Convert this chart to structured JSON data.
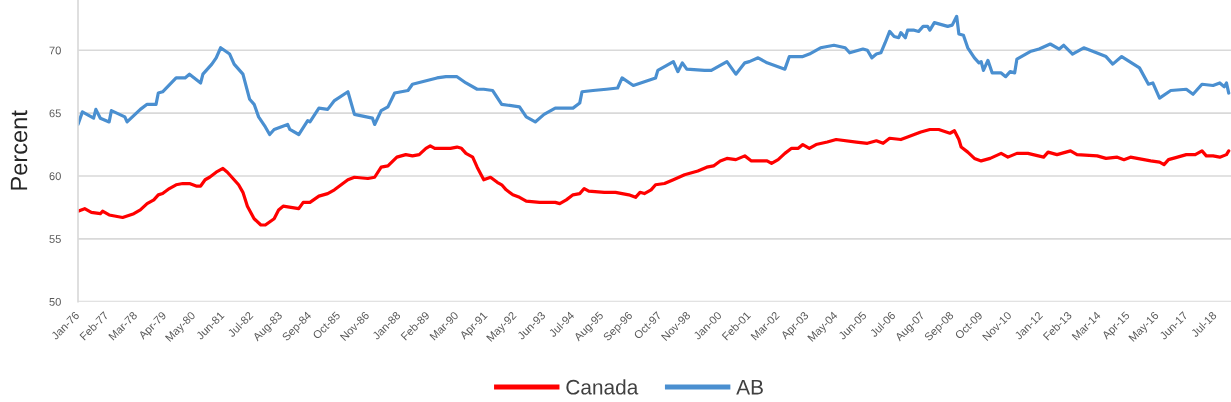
{
  "chart_data": {
    "type": "line",
    "ylabel": "Percent",
    "xlim": [
      "1976-01",
      "2019-02"
    ],
    "xticks": [
      {
        "value": "1976-01",
        "label": "Jan-76"
      },
      {
        "value": "1977-02",
        "label": "Feb-77"
      },
      {
        "value": "1978-03",
        "label": "Mar-78"
      },
      {
        "value": "1979-04",
        "label": "Apr-79"
      },
      {
        "value": "1980-05",
        "label": "May-80"
      },
      {
        "value": "1981-06",
        "label": "Jun-81"
      },
      {
        "value": "1982-07",
        "label": "Jul-82"
      },
      {
        "value": "1983-08",
        "label": "Aug-83"
      },
      {
        "value": "1984-09",
        "label": "Sep-84"
      },
      {
        "value": "1985-10",
        "label": "Oct-85"
      },
      {
        "value": "1986-11",
        "label": "Nov-86"
      },
      {
        "value": "1988-01",
        "label": "Jan-88"
      },
      {
        "value": "1989-02",
        "label": "Feb-89"
      },
      {
        "value": "1990-03",
        "label": "Mar-90"
      },
      {
        "value": "1991-04",
        "label": "Apr-91"
      },
      {
        "value": "1992-05",
        "label": "May-92"
      },
      {
        "value": "1993-06",
        "label": "Jun-93"
      },
      {
        "value": "1994-07",
        "label": "Jul-94"
      },
      {
        "value": "1995-08",
        "label": "Aug-95"
      },
      {
        "value": "1996-09",
        "label": "Sep-96"
      },
      {
        "value": "1997-10",
        "label": "Oct-97"
      },
      {
        "value": "1998-11",
        "label": "Nov-98"
      },
      {
        "value": "2000-01",
        "label": "Jan-00"
      },
      {
        "value": "2001-02",
        "label": "Feb-01"
      },
      {
        "value": "2002-03",
        "label": "Mar-02"
      },
      {
        "value": "2003-04",
        "label": "Apr-03"
      },
      {
        "value": "2004-05",
        "label": "May-04"
      },
      {
        "value": "2005-06",
        "label": "Jun-05"
      },
      {
        "value": "2006-07",
        "label": "Jul-06"
      },
      {
        "value": "2007-08",
        "label": "Aug-07"
      },
      {
        "value": "2008-09",
        "label": "Sep-08"
      },
      {
        "value": "2009-10",
        "label": "Oct-09"
      },
      {
        "value": "2010-11",
        "label": "Nov-10"
      },
      {
        "value": "2012-01",
        "label": "Jan-12"
      },
      {
        "value": "2013-02",
        "label": "Feb-13"
      },
      {
        "value": "2014-03",
        "label": "Mar-14"
      },
      {
        "value": "2015-04",
        "label": "Apr-15"
      },
      {
        "value": "2016-05",
        "label": "May-16"
      },
      {
        "value": "2017-06",
        "label": "Jun-17"
      },
      {
        "value": "2018-07",
        "label": "Jul-18"
      }
    ],
    "ylim": [
      50,
      74
    ],
    "yticks": [
      50,
      55,
      60,
      65,
      70
    ],
    "grid": "y",
    "legend": "bottom",
    "line_style": "solid",
    "series": [
      {
        "name": "Canada",
        "color": "#ff0000",
        "x": [
          "1976-01",
          "1976-04",
          "1976-07",
          "1976-11",
          "1976-12",
          "1977-03",
          "1977-09",
          "1978-02",
          "1978-05",
          "1978-08",
          "1978-11",
          "1979-01",
          "1979-03",
          "1979-06",
          "1979-09",
          "1979-12",
          "1980-03",
          "1980-06",
          "1980-08",
          "1980-10",
          "1980-12",
          "1981-03",
          "1981-06",
          "1981-08",
          "1981-10",
          "1982-01",
          "1982-03",
          "1982-05",
          "1982-08",
          "1982-11",
          "1983-01",
          "1983-05",
          "1983-07",
          "1983-09",
          "1984-04",
          "1984-06",
          "1984-09",
          "1985-01",
          "1985-05",
          "1985-08",
          "1985-11",
          "1986-02",
          "1986-05",
          "1986-11",
          "1987-02",
          "1987-05",
          "1987-08",
          "1987-12",
          "1988-04",
          "1988-07",
          "1988-10",
          "1989-01",
          "1989-03",
          "1989-05",
          "1989-12",
          "1990-03",
          "1990-05",
          "1990-07",
          "1990-10",
          "1990-12",
          "1991-03",
          "1991-06",
          "1991-09",
          "1991-11",
          "1992-01",
          "1992-04",
          "1992-07",
          "1992-10",
          "1993-04",
          "1993-11",
          "1994-01",
          "1994-04",
          "1994-07",
          "1994-10",
          "1994-12",
          "1995-02",
          "1995-09",
          "1996-02",
          "1996-08",
          "1996-11",
          "1997-01",
          "1997-03",
          "1997-06",
          "1997-08",
          "1997-12",
          "1998-04",
          "1998-09",
          "1999-03",
          "1999-07",
          "1999-10",
          "2000-01",
          "2000-04",
          "2000-08",
          "2000-12",
          "2001-03",
          "2001-10",
          "2001-12",
          "2002-03",
          "2002-06",
          "2002-09",
          "2002-12",
          "2003-02",
          "2003-05",
          "2003-08",
          "2004-01",
          "2004-05",
          "2005-02",
          "2005-07",
          "2005-11",
          "2006-02",
          "2006-05",
          "2006-10",
          "2007-01",
          "2007-04",
          "2007-07",
          "2007-11",
          "2008-03",
          "2008-08",
          "2008-10",
          "2008-12",
          "2009-01",
          "2009-04",
          "2009-07",
          "2009-10",
          "2010-02",
          "2010-07",
          "2010-10",
          "2011-02",
          "2011-07",
          "2012-02",
          "2012-04",
          "2012-08",
          "2013-02",
          "2013-05",
          "2014-02",
          "2014-06",
          "2014-11",
          "2015-02",
          "2015-05",
          "2016-02",
          "2016-06",
          "2016-08",
          "2016-10",
          "2017-02",
          "2017-06",
          "2017-10",
          "2018-01",
          "2018-03",
          "2018-06",
          "2018-09",
          "2018-12",
          "2019-01"
        ],
        "values": [
          57.2,
          57.4,
          57.1,
          57.0,
          57.2,
          56.9,
          56.7,
          57.0,
          57.3,
          57.8,
          58.1,
          58.5,
          58.6,
          59.0,
          59.3,
          59.4,
          59.4,
          59.2,
          59.2,
          59.7,
          59.9,
          60.3,
          60.6,
          60.3,
          59.9,
          59.3,
          58.7,
          57.6,
          56.6,
          56.1,
          56.1,
          56.6,
          57.3,
          57.6,
          57.4,
          57.9,
          57.9,
          58.4,
          58.6,
          58.9,
          59.3,
          59.7,
          59.9,
          59.8,
          59.9,
          60.7,
          60.8,
          61.5,
          61.7,
          61.6,
          61.7,
          62.2,
          62.4,
          62.2,
          62.2,
          62.3,
          62.2,
          61.8,
          61.5,
          60.7,
          59.7,
          59.9,
          59.5,
          59.3,
          58.9,
          58.5,
          58.3,
          58.0,
          57.9,
          57.9,
          57.8,
          58.1,
          58.5,
          58.6,
          59.0,
          58.8,
          58.7,
          58.7,
          58.5,
          58.3,
          58.7,
          58.6,
          58.9,
          59.3,
          59.4,
          59.7,
          60.1,
          60.4,
          60.7,
          60.8,
          61.2,
          61.4,
          61.3,
          61.6,
          61.2,
          61.2,
          61.0,
          61.3,
          61.8,
          62.2,
          62.2,
          62.5,
          62.2,
          62.5,
          62.7,
          62.9,
          62.7,
          62.6,
          62.8,
          62.6,
          63.0,
          62.9,
          63.1,
          63.3,
          63.5,
          63.7,
          63.7,
          63.4,
          63.6,
          62.9,
          62.3,
          61.9,
          61.4,
          61.2,
          61.4,
          61.8,
          61.5,
          61.8,
          61.8,
          61.5,
          61.9,
          61.7,
          62.0,
          61.7,
          61.6,
          61.4,
          61.5,
          61.3,
          61.5,
          61.2,
          61.1,
          60.9,
          61.3,
          61.5,
          61.7,
          61.7,
          62.0,
          61.6,
          61.6,
          61.5,
          61.7,
          62.0
        ]
      },
      {
        "name": "AB",
        "color": "#4a8fd0",
        "x": [
          "1976-01",
          "1976-03",
          "1976-08",
          "1976-09",
          "1976-11",
          "1977-03",
          "1977-04",
          "1977-10",
          "1977-11",
          "1978-05",
          "1978-08",
          "1978-12",
          "1979-01",
          "1979-03",
          "1979-09",
          "1980-01",
          "1980-03",
          "1980-08",
          "1980-09",
          "1981-01",
          "1981-03",
          "1981-05",
          "1981-09",
          "1981-11",
          "1982-03",
          "1982-06",
          "1982-08",
          "1982-10",
          "1983-01",
          "1983-03",
          "1983-05",
          "1983-11",
          "1983-12",
          "1984-04",
          "1984-08",
          "1984-09",
          "1985-01",
          "1985-05",
          "1985-08",
          "1986-02",
          "1986-05",
          "1987-01",
          "1987-02",
          "1987-05",
          "1987-08",
          "1987-11",
          "1988-05",
          "1988-07",
          "1989-06",
          "1989-10",
          "1990-03",
          "1990-07",
          "1990-12",
          "1991-03",
          "1991-07",
          "1991-11",
          "1992-07",
          "1992-10",
          "1993-02",
          "1993-06",
          "1993-11",
          "1994-07",
          "1994-10",
          "1994-11",
          "1995-04",
          "1995-10",
          "1996-03",
          "1996-05",
          "1996-10",
          "1997-08",
          "1997-09",
          "1998-01",
          "1998-04",
          "1998-06",
          "1998-08",
          "1998-10",
          "1999-06",
          "1999-09",
          "2000-04",
          "2000-08",
          "2000-12",
          "2001-02",
          "2001-06",
          "2001-10",
          "2002-06",
          "2002-08",
          "2003-02",
          "2003-05",
          "2003-10",
          "2004-04",
          "2004-09",
          "2004-11",
          "2005-05",
          "2005-07",
          "2005-09",
          "2005-11",
          "2006-01",
          "2006-03",
          "2006-05",
          "2006-07",
          "2006-09",
          "2006-10",
          "2006-12",
          "2007-01",
          "2007-04",
          "2007-06",
          "2007-08",
          "2007-10",
          "2007-11",
          "2008-01",
          "2008-05",
          "2008-07",
          "2008-09",
          "2008-11",
          "2008-12",
          "2009-02",
          "2009-04",
          "2009-07",
          "2009-09",
          "2009-10",
          "2009-11",
          "2010-01",
          "2010-03",
          "2010-07",
          "2010-09",
          "2010-11",
          "2011-01",
          "2011-02",
          "2011-08",
          "2011-12",
          "2012-05",
          "2012-09",
          "2012-11",
          "2013-03",
          "2013-08",
          "2014-06",
          "2014-09",
          "2015-01",
          "2015-09",
          "2016-01",
          "2016-03",
          "2016-06",
          "2016-11",
          "2017-06",
          "2017-09",
          "2018-01",
          "2018-06",
          "2018-09",
          "2018-11",
          "2018-12",
          "2019-01"
        ],
        "values": [
          64.1,
          65.1,
          64.6,
          65.3,
          64.6,
          64.3,
          65.2,
          64.7,
          64.3,
          65.3,
          65.7,
          65.7,
          66.6,
          66.7,
          67.8,
          67.8,
          68.1,
          67.4,
          68.1,
          68.9,
          69.4,
          70.2,
          69.7,
          68.9,
          68.1,
          66.1,
          65.7,
          64.7,
          63.9,
          63.3,
          63.7,
          64.1,
          63.7,
          63.3,
          64.4,
          64.3,
          65.4,
          65.3,
          66.0,
          66.7,
          64.9,
          64.6,
          64.1,
          65.2,
          65.5,
          66.6,
          66.8,
          67.3,
          67.8,
          67.9,
          67.9,
          67.4,
          66.9,
          66.9,
          66.8,
          65.7,
          65.5,
          64.7,
          64.3,
          64.9,
          65.4,
          65.4,
          65.8,
          66.7,
          66.8,
          66.9,
          67.0,
          67.8,
          67.2,
          67.8,
          68.4,
          68.8,
          69.1,
          68.3,
          69.0,
          68.5,
          68.4,
          68.4,
          69.1,
          68.1,
          69.0,
          69.1,
          69.4,
          69.0,
          68.5,
          69.5,
          69.5,
          69.7,
          70.2,
          70.4,
          70.2,
          69.8,
          70.1,
          70.0,
          69.4,
          69.7,
          69.8,
          70.6,
          71.5,
          71.1,
          71.0,
          71.4,
          71.0,
          71.6,
          71.6,
          71.5,
          71.9,
          71.9,
          71.6,
          72.2,
          72.0,
          71.9,
          72.0,
          72.7,
          71.3,
          71.2,
          70.2,
          69.4,
          69.0,
          69.1,
          68.4,
          69.2,
          68.2,
          68.2,
          67.9,
          68.3,
          68.2,
          69.3,
          69.9,
          70.1,
          70.5,
          70.1,
          70.4,
          69.7,
          70.2,
          69.5,
          68.9,
          69.5,
          68.6,
          67.3,
          67.4,
          66.2,
          66.8,
          66.9,
          66.5,
          67.3,
          67.2,
          67.4,
          67.1,
          67.4,
          66.6
        ]
      }
    ]
  }
}
